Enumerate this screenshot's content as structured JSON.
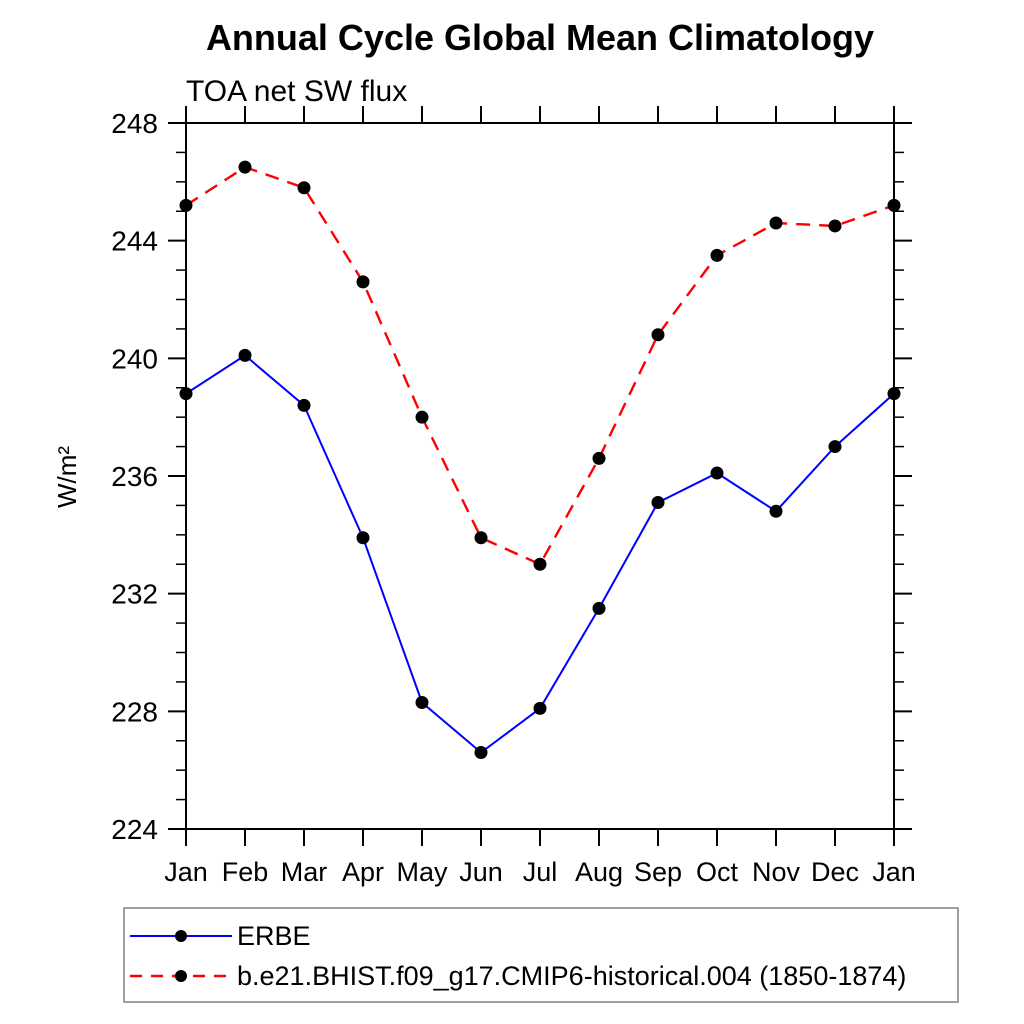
{
  "header": {
    "title": "Annual Cycle Global Mean Climatology",
    "subtitle": "TOA net SW flux"
  },
  "chart_data": {
    "type": "line",
    "title": "Annual Cycle Global Mean Climatology",
    "subtitle": "TOA net SW flux",
    "xlabel": "",
    "ylabel": "W/m²",
    "categories": [
      "Jan",
      "Feb",
      "Mar",
      "Apr",
      "May",
      "Jun",
      "Jul",
      "Aug",
      "Sep",
      "Oct",
      "Nov",
      "Dec",
      "Jan"
    ],
    "ylim": [
      224,
      248
    ],
    "ytick_major_step": 4,
    "ytick_minor_step": 1,
    "grid": false,
    "frame_color": "#000000",
    "marker": {
      "shape": "circle",
      "color": "#000000",
      "radius": 6.5
    },
    "legend_position": "bottom-left-box",
    "legend_border_color": "#808080",
    "series": [
      {
        "name": "ERBE",
        "color": "#0000ff",
        "line_style": "solid",
        "values": [
          238.8,
          240.1,
          238.4,
          233.9,
          228.3,
          226.6,
          228.1,
          231.5,
          235.1,
          236.1,
          234.8,
          237.0,
          238.8
        ]
      },
      {
        "name": "b.e21.BHIST.f09_g17.CMIP6-historical.004 (1850-1874)",
        "color": "#ff0000",
        "line_style": "dashed",
        "values": [
          245.2,
          246.5,
          245.8,
          242.6,
          238.0,
          233.9,
          233.0,
          236.6,
          240.8,
          243.5,
          244.6,
          244.5,
          245.2
        ]
      }
    ]
  }
}
